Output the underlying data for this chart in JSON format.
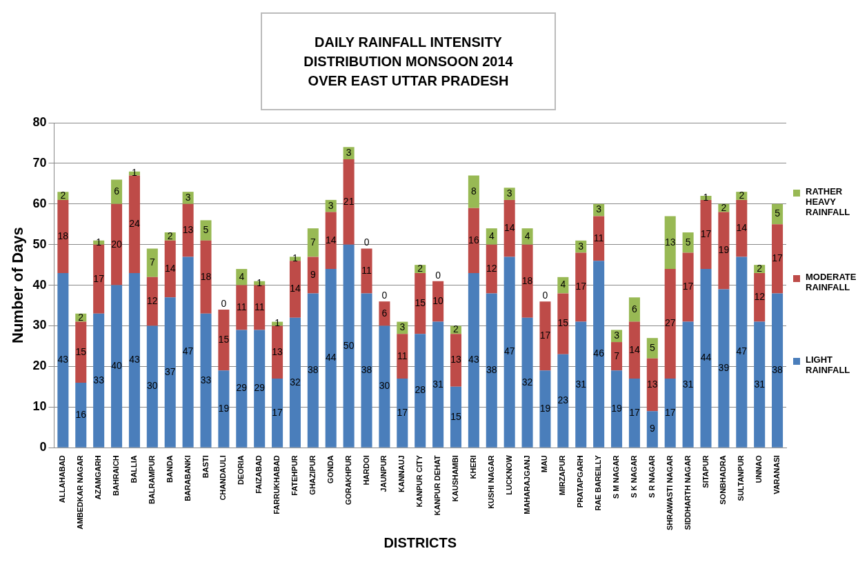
{
  "chart_data": {
    "type": "bar",
    "title": "DAILY RAINFALL INTENSITY DISTRIBUTION MONSOON 2014 OVER EAST UTTAR PRADESH",
    "xlabel": "DISTRICTS",
    "ylabel": "Number of Days",
    "categories": [
      "ALLAHABAD",
      "AMBEDKAR NAGAR",
      "AZAMGARH",
      "BAHRAICH",
      "BALLIA",
      "BALRAMPUR",
      "BANDA",
      "BARABANKI",
      "BASTI",
      "CHANDAULI",
      "DEORIA",
      "FAIZABAD",
      "FARRUKHABAD",
      "FATEHPUR",
      "GHAZIPUR",
      "GONDA",
      "GORAKHPUR",
      "HARDOI",
      "JAUNPUR",
      "KANNAUJ",
      "KANPUR CITY",
      "KANPUR DEHAT",
      "KAUSHAMBI",
      "KHERI",
      "KUSHI NAGAR",
      "LUCKNOW",
      "MAHARAJGANJ",
      "MAU",
      "MIRZAPUR",
      "PRATAPGARH",
      "RAE BAREILLY",
      "S M NAGAR",
      "S K NAGAR",
      "S R NAGAR",
      "SHRAWASTI NAGAR",
      "SIDDHARTH NAGAR",
      "SITAPUR",
      "SONBHADRA",
      "SULTANPUR",
      "UNNAO",
      "VARANASI"
    ],
    "series": [
      {
        "name": "LIGHT RAINFALL",
        "color": "#4a7ebb",
        "values": [
          43,
          16,
          33,
          40,
          43,
          30,
          37,
          47,
          33,
          19,
          29,
          29,
          17,
          32,
          38,
          44,
          50,
          38,
          30,
          17,
          28,
          31,
          15,
          43,
          38,
          47,
          32,
          19,
          23,
          31,
          46,
          19,
          17,
          9,
          17,
          31,
          44,
          39,
          47,
          31,
          38
        ]
      },
      {
        "name": "MODERATE RAINFALL",
        "color": "#be4b48",
        "values": [
          18,
          15,
          17,
          20,
          24,
          12,
          14,
          13,
          18,
          15,
          11,
          11,
          13,
          14,
          9,
          14,
          21,
          11,
          6,
          11,
          15,
          10,
          13,
          16,
          12,
          14,
          18,
          17,
          15,
          17,
          11,
          7,
          14,
          13,
          27,
          17,
          17,
          19,
          14,
          12,
          17
        ]
      },
      {
        "name": "RATHER HEAVY RAINFALL",
        "color": "#98b954",
        "values": [
          2,
          2,
          1,
          6,
          1,
          7,
          2,
          3,
          5,
          0,
          4,
          1,
          1,
          1,
          7,
          3,
          3,
          0,
          0,
          3,
          2,
          0,
          2,
          8,
          4,
          3,
          4,
          0,
          4,
          3,
          3,
          3,
          6,
          5,
          13,
          5,
          1,
          2,
          2,
          2,
          5
        ]
      }
    ],
    "stacked": true,
    "data_labels": true,
    "ylim": [
      0,
      80
    ],
    "yticks": [
      0,
      10,
      20,
      30,
      40,
      50,
      60,
      70,
      80
    ],
    "grid": "y",
    "legend": "right"
  }
}
